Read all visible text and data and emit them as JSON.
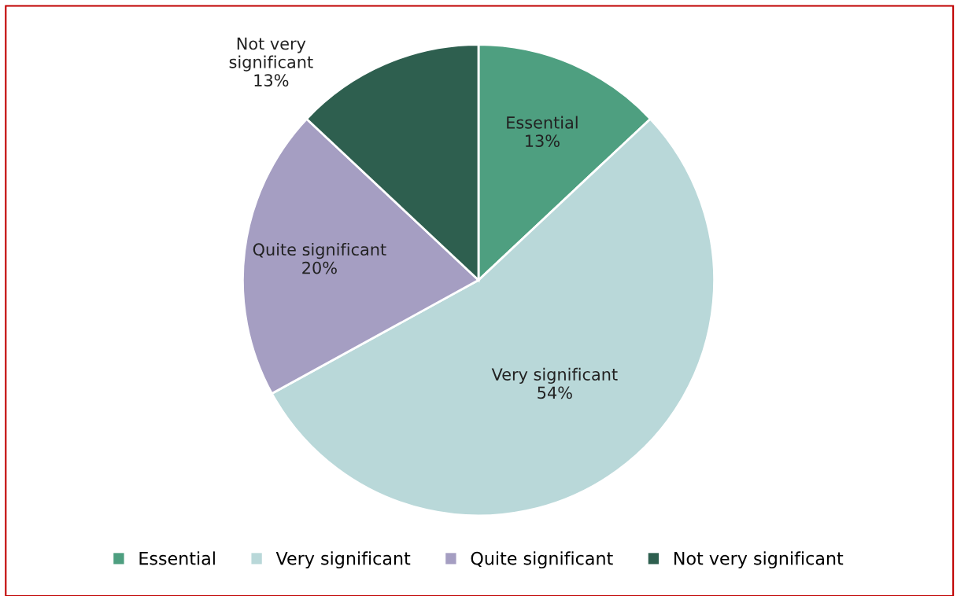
{
  "chart_data": {
    "type": "pie",
    "categories": [
      "Essential",
      "Very significant",
      "Quite significant",
      "Not very significant"
    ],
    "values": [
      13,
      54,
      20,
      13
    ],
    "colors": [
      "#4e9f80",
      "#b9d8d9",
      "#a59ec2",
      "#2e5f4f"
    ],
    "value_labels": [
      "13%",
      "54%",
      "20%",
      "13%"
    ],
    "legend": "bottom"
  }
}
